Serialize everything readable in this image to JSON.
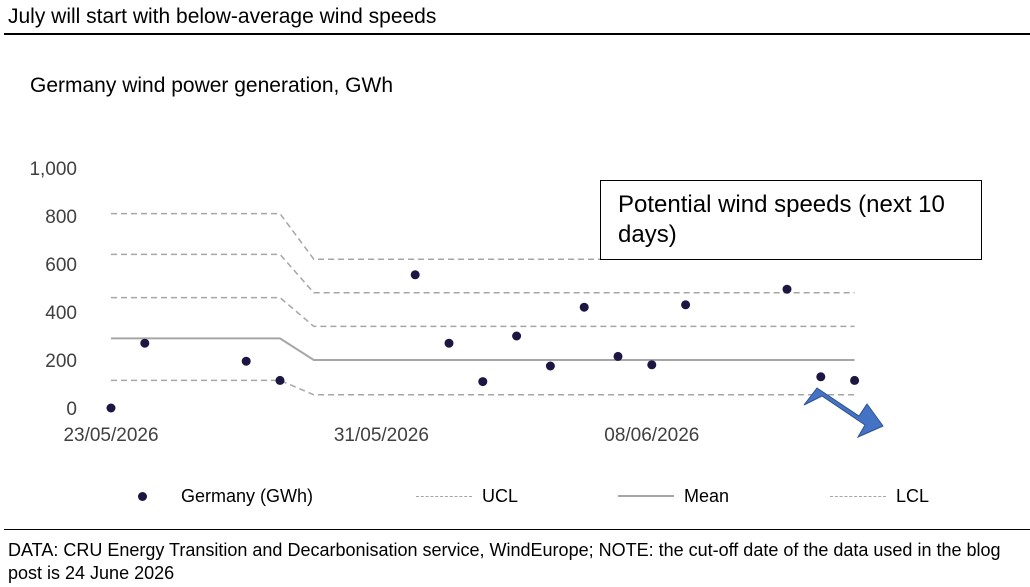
{
  "header": {
    "title": "July will start with below-average wind speeds"
  },
  "footer": {
    "source": "DATA: CRU Energy Transition and Decarbonisation service, WindEurope; NOTE: the cut-off date of the data used in the blog post is 24 June 2026"
  },
  "annotation": {
    "text": "Potential wind speeds (next 10 days)",
    "arrow_color": "#4472c4"
  },
  "chart_data": {
    "type": "scatter",
    "title": "Germany wind power generation, GWh",
    "xlabel": "",
    "ylabel": "",
    "ylim": [
      0,
      1000
    ],
    "y_ticks": [
      "0",
      "200",
      "400",
      "600",
      "800",
      "1,000"
    ],
    "x_range": [
      "2026-05-23",
      "2026-06-15"
    ],
    "x_ticks": [
      {
        "date": "2026-05-23",
        "label": "23/05/2026"
      },
      {
        "date": "2026-05-31",
        "label": "31/05/2026"
      },
      {
        "date": "2026-06-08",
        "label": "08/06/2026"
      }
    ],
    "grid": false,
    "legend_position": "bottom",
    "colors": {
      "points": "#1b1742",
      "lines": "#a6a6a6"
    },
    "series": [
      {
        "name": "Germany (GWh)",
        "kind": "points",
        "x": [
          "2026-05-23",
          "2026-05-24",
          "2026-05-27",
          "2026-05-28",
          "2026-06-01",
          "2026-06-02",
          "2026-06-03",
          "2026-06-04",
          "2026-06-05",
          "2026-06-06",
          "2026-06-07",
          "2026-06-08",
          "2026-06-09",
          "2026-06-12",
          "2026-06-13",
          "2026-06-14"
        ],
        "values": [
          0,
          270,
          195,
          115,
          555,
          270,
          110,
          300,
          175,
          420,
          215,
          180,
          430,
          495,
          130,
          115
        ]
      },
      {
        "name": "UCL",
        "kind": "dashed",
        "x": [
          "2026-05-23",
          "2026-05-28",
          "2026-05-29",
          "2026-06-14"
        ],
        "values": [
          810,
          810,
          620,
          620
        ]
      },
      {
        "name": "",
        "kind": "dashed",
        "x": [
          "2026-05-23",
          "2026-05-28",
          "2026-05-29",
          "2026-06-14"
        ],
        "values": [
          640,
          640,
          480,
          480
        ]
      },
      {
        "name": "",
        "kind": "dashed",
        "x": [
          "2026-05-23",
          "2026-05-28",
          "2026-05-29",
          "2026-06-14"
        ],
        "values": [
          460,
          460,
          340,
          340
        ]
      },
      {
        "name": "Mean",
        "kind": "solid",
        "x": [
          "2026-05-23",
          "2026-05-28",
          "2026-05-29",
          "2026-06-14"
        ],
        "values": [
          290,
          290,
          200,
          200
        ]
      },
      {
        "name": "LCL",
        "kind": "dashed",
        "x": [
          "2026-05-23",
          "2026-05-28",
          "2026-05-29",
          "2026-06-14"
        ],
        "values": [
          115,
          115,
          55,
          55
        ]
      }
    ],
    "legend": [
      {
        "label": "Germany (GWh)",
        "symbol": "dot"
      },
      {
        "label": "UCL",
        "symbol": "dashed"
      },
      {
        "label": "Mean",
        "symbol": "solid"
      },
      {
        "label": "LCL",
        "symbol": "dashed"
      }
    ]
  }
}
